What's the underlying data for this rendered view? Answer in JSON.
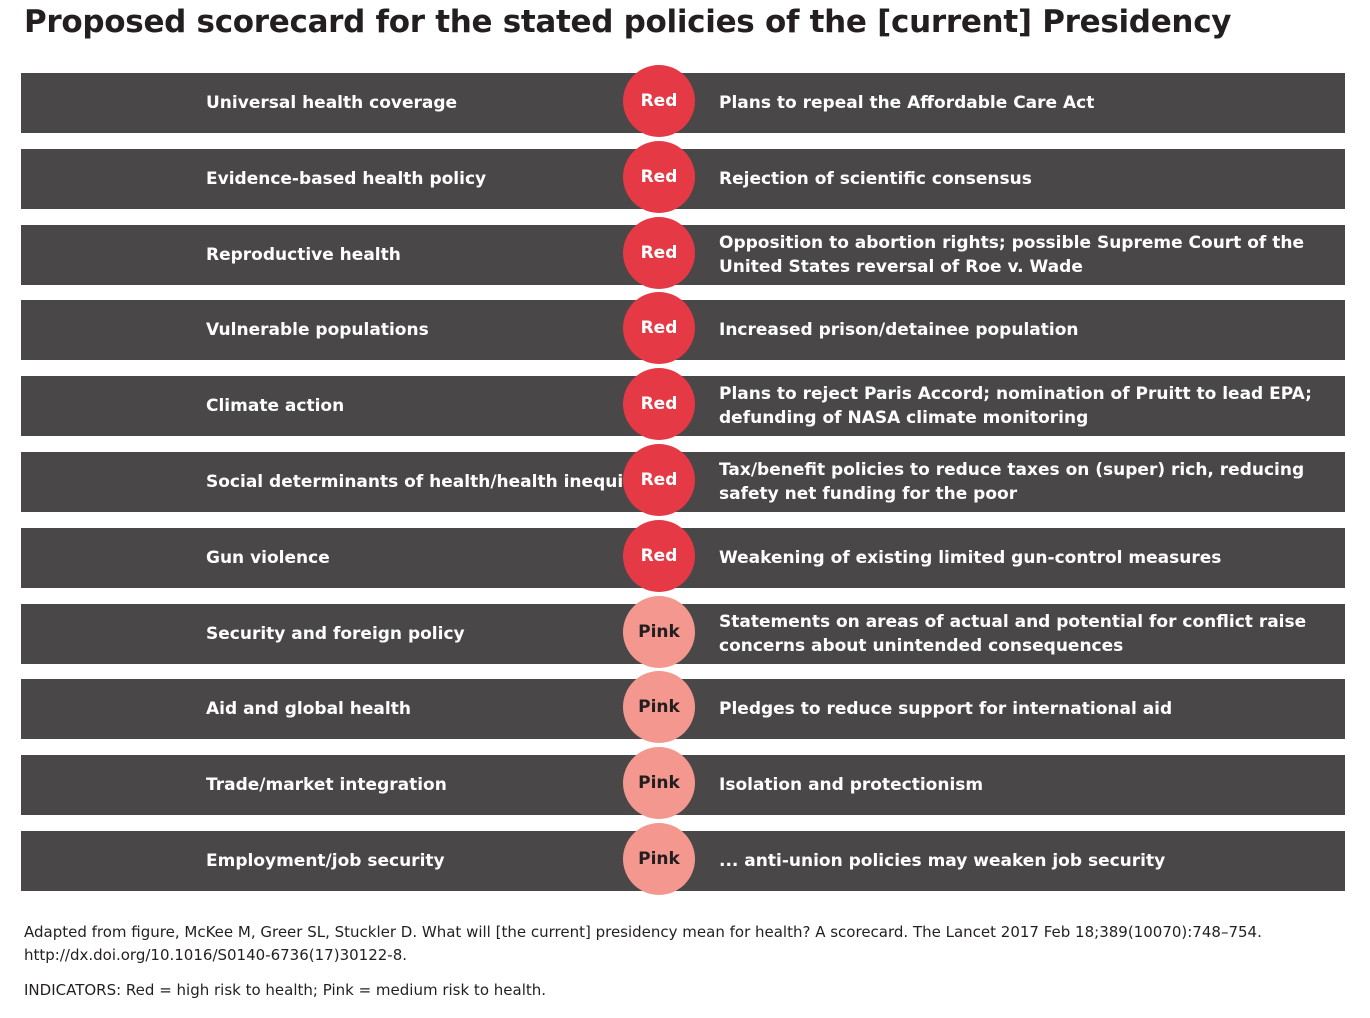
{
  "title": "Proposed scorecard for the stated policies of the [current] Presidency",
  "colors": {
    "row_background": "#4a4748",
    "red": "#e63946",
    "pink": "#f4978e"
  },
  "rows": [
    {
      "topic": "Universal health coverage",
      "rating": "Red",
      "description": "Plans to repeal the Affordable Care Act"
    },
    {
      "topic": "Evidence-based health policy",
      "rating": "Red",
      "description": "Rejection of scientific consensus"
    },
    {
      "topic": "Reproductive health",
      "rating": "Red",
      "description": "Opposition to abortion rights; possible Supreme Court of the United States reversal of Roe v. Wade"
    },
    {
      "topic": "Vulnerable populations",
      "rating": "Red",
      "description": "Increased prison/detainee population"
    },
    {
      "topic": "Climate action",
      "rating": "Red",
      "description": "Plans to reject Paris Accord; nomination of Pruitt to lead EPA; defunding of NASA climate monitoring"
    },
    {
      "topic": "Social determinants of health/health inequities",
      "rating": "Red",
      "description": "Tax/benefit policies to reduce taxes on (super) rich, reducing safety net funding for the poor"
    },
    {
      "topic": "Gun violence",
      "rating": "Red",
      "description": "Weakening of existing limited gun-control measures"
    },
    {
      "topic": "Security and foreign policy",
      "rating": "Pink",
      "description": "Statements on areas of actual and potential for conflict raise concerns about unintended consequences"
    },
    {
      "topic": "Aid and global health",
      "rating": "Pink",
      "description": "Pledges to reduce support for international aid"
    },
    {
      "topic": "Trade/market integration",
      "rating": "Pink",
      "description": "Isolation and protectionism"
    },
    {
      "topic": "Employment/job security",
      "rating": "Pink",
      "description": "... anti-union policies may weaken job security"
    }
  ],
  "footnote": "Adapted from figure, McKee M, Greer SL, Stuckler D. What will [the current] presidency mean for health? A scorecard. The Lancet 2017 Feb 18;389(10070):748–754. http://dx.doi.org/10.1016/S0140-6736(17)30122-8.",
  "indicators": "INDICATORS: Red = high risk to health; Pink = medium risk to health."
}
